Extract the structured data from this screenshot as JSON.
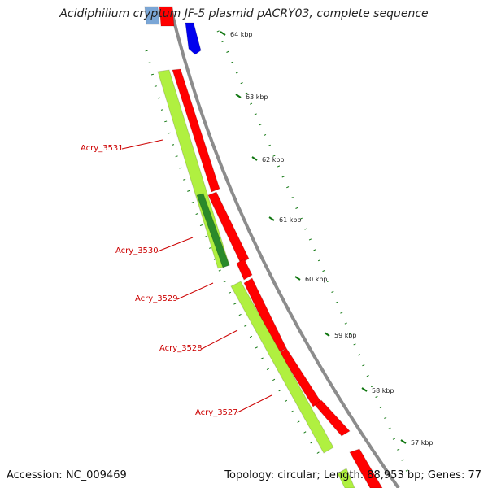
{
  "title": "Acidiphilium cryptum JF-5 plasmid pACRY03, complete sequence",
  "footer": {
    "accession": "Accession: NC_009469",
    "summary": "Topology: circular; Length: 88,953 bp; Genes: 77"
  },
  "ruler_labels": [
    "64 kbp",
    "63 kbp",
    "62 kbp",
    "61 kbp",
    "60 kbp",
    "59 kbp",
    "58 kbp",
    "57 kbp"
  ],
  "gene_labels": [
    "Acry_3531",
    "Acry_3530",
    "Acry_3529",
    "Acry_3528",
    "Acry_3527"
  ],
  "colors": {
    "backbone": "#8c8c8c",
    "gene_red": "#ff0000",
    "gene_green": "#b0f040",
    "gene_dark_green": "#2a8a2a",
    "gene_blue": "#0000ee",
    "gene_label": "#cc0000",
    "ruler": "#117711"
  }
}
